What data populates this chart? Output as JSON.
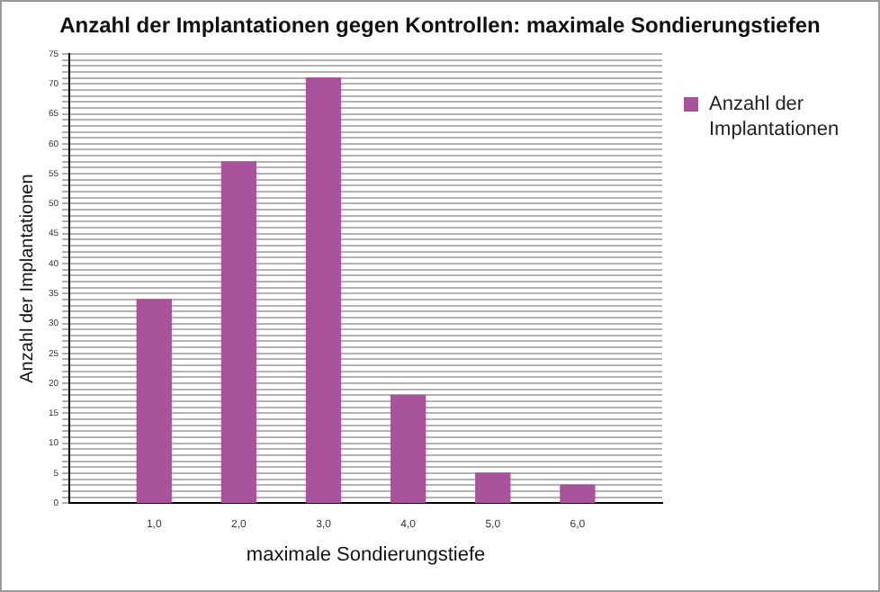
{
  "chart_data": {
    "type": "bar",
    "title": "Anzahl der Implantationen gegen Kontrollen: maximale Sondierungstiefen",
    "xlabel": "maximale Sondierungstiefe",
    "ylabel": "Anzahl der Implantationen",
    "x": [
      1,
      2,
      3,
      4,
      5,
      6
    ],
    "series": [
      {
        "name": "Anzahl der Implantationen",
        "color": "#a8539b",
        "values": [
          34,
          57,
          71,
          18,
          5,
          3
        ]
      }
    ],
    "xlim": [
      0,
      7
    ],
    "xticks": [
      {
        "value": 1,
        "label": "1,0"
      },
      {
        "value": 2,
        "label": "2,0"
      },
      {
        "value": 3,
        "label": "3,0"
      },
      {
        "value": 4,
        "label": "4,0"
      },
      {
        "value": 5,
        "label": "5,0"
      },
      {
        "value": 6,
        "label": "6,0"
      }
    ],
    "ylim": [
      0,
      75
    ],
    "yticks": [
      0,
      {
        "value": 1,
        "label": null
      },
      {
        "value": 2,
        "label": null
      },
      {
        "value": 3,
        "label": null
      },
      {
        "value": 4,
        "label": null
      },
      5,
      {
        "value": 6,
        "label": null
      },
      {
        "value": 7,
        "label": null
      },
      {
        "value": 8,
        "label": null
      },
      {
        "value": 9,
        "label": null
      },
      10,
      {
        "value": 11,
        "label": null
      },
      {
        "value": 12,
        "label": null
      },
      {
        "value": 13,
        "label": null
      },
      {
        "value": 14,
        "label": null
      },
      15,
      {
        "value": 16,
        "label": null
      },
      {
        "value": 17,
        "label": null
      },
      {
        "value": 18,
        "label": null
      },
      {
        "value": 19,
        "label": null
      },
      20,
      {
        "value": 21,
        "label": null
      },
      {
        "value": 22,
        "label": null
      },
      {
        "value": 23,
        "label": null
      },
      {
        "value": 24,
        "label": null
      },
      25,
      {
        "value": 26,
        "label": null
      },
      {
        "value": 27,
        "label": null
      },
      {
        "value": 28,
        "label": null
      },
      {
        "value": 29,
        "label": null
      },
      30,
      {
        "value": 31,
        "label": null
      },
      {
        "value": 32,
        "label": null
      },
      {
        "value": 33,
        "label": null
      },
      {
        "value": 34,
        "label": null
      },
      35,
      {
        "value": 36,
        "label": null
      },
      {
        "value": 37,
        "label": null
      },
      {
        "value": 38,
        "label": null
      },
      {
        "value": 39,
        "label": null
      },
      40,
      {
        "value": 41,
        "label": null
      },
      {
        "value": 42,
        "label": null
      },
      {
        "value": 43,
        "label": null
      },
      {
        "value": 44,
        "label": null
      },
      45,
      {
        "value": 46,
        "label": null
      },
      {
        "value": 47,
        "label": null
      },
      {
        "value": 48,
        "label": null
      },
      {
        "value": 49,
        "label": null
      },
      50,
      {
        "value": 51,
        "label": null
      },
      {
        "value": 52,
        "label": null
      },
      {
        "value": 53,
        "label": null
      },
      {
        "value": 54,
        "label": null
      },
      55,
      {
        "value": 56,
        "label": null
      },
      {
        "value": 57,
        "label": null
      },
      {
        "value": 58,
        "label": null
      },
      {
        "value": 59,
        "label": null
      },
      60,
      {
        "value": 61,
        "label": null
      },
      {
        "value": 62,
        "label": null
      },
      {
        "value": 63,
        "label": null
      },
      {
        "value": 64,
        "label": null
      },
      65,
      {
        "value": 66,
        "label": null
      },
      {
        "value": 67,
        "label": null
      },
      {
        "value": 68,
        "label": null
      },
      {
        "value": 69,
        "label": null
      },
      70,
      {
        "value": 71,
        "label": null
      },
      {
        "value": 72,
        "label": null
      },
      {
        "value": 73,
        "label": null
      },
      {
        "value": 74,
        "label": null
      },
      75
    ],
    "grid": "y",
    "legend": "right"
  }
}
